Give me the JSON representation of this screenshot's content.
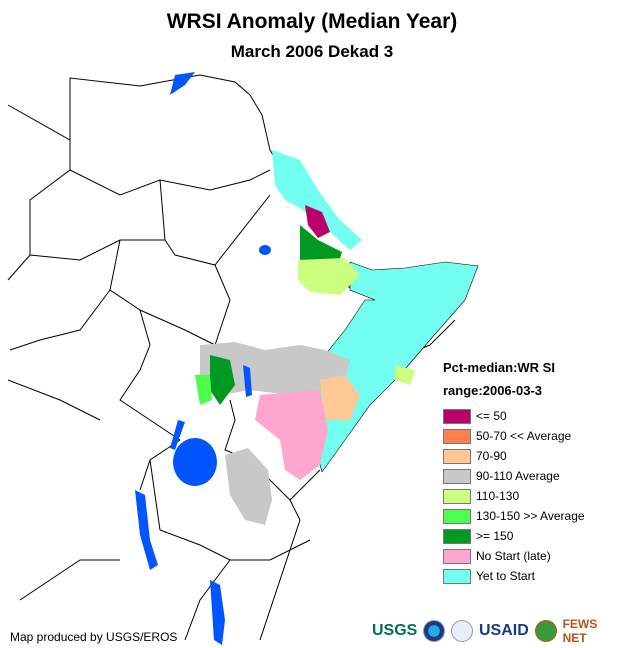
{
  "title": "WRSI Anomaly (Median Year)",
  "subtitle": "March 2006 Dekad 3",
  "legend": {
    "heading": "Pct-median:WR SI",
    "range": "range:2006-03-3",
    "items": [
      {
        "label": "<= 50",
        "color": "#B8006B"
      },
      {
        "label": "50-70 << Average",
        "color": "#FF7F4F"
      },
      {
        "label": "70-90",
        "color": "#FFC896"
      },
      {
        "label": "90-110 Average",
        "color": "#C8C8C8"
      },
      {
        "label": "110-130",
        "color": "#CCFF80"
      },
      {
        "label": "130-150 >> Average",
        "color": "#4CFF4C"
      },
      {
        "label": ">= 150",
        "color": "#009A22"
      },
      {
        "label": "No Start (late)",
        "color": "#FFA6CF"
      },
      {
        "label": "Yet to Start",
        "color": "#73FFF0"
      }
    ]
  },
  "credit": "Map produced by USGS/EROS",
  "logos": {
    "usgs": "USGS",
    "usaid": "USAID",
    "fews": "FEWS NET"
  }
}
